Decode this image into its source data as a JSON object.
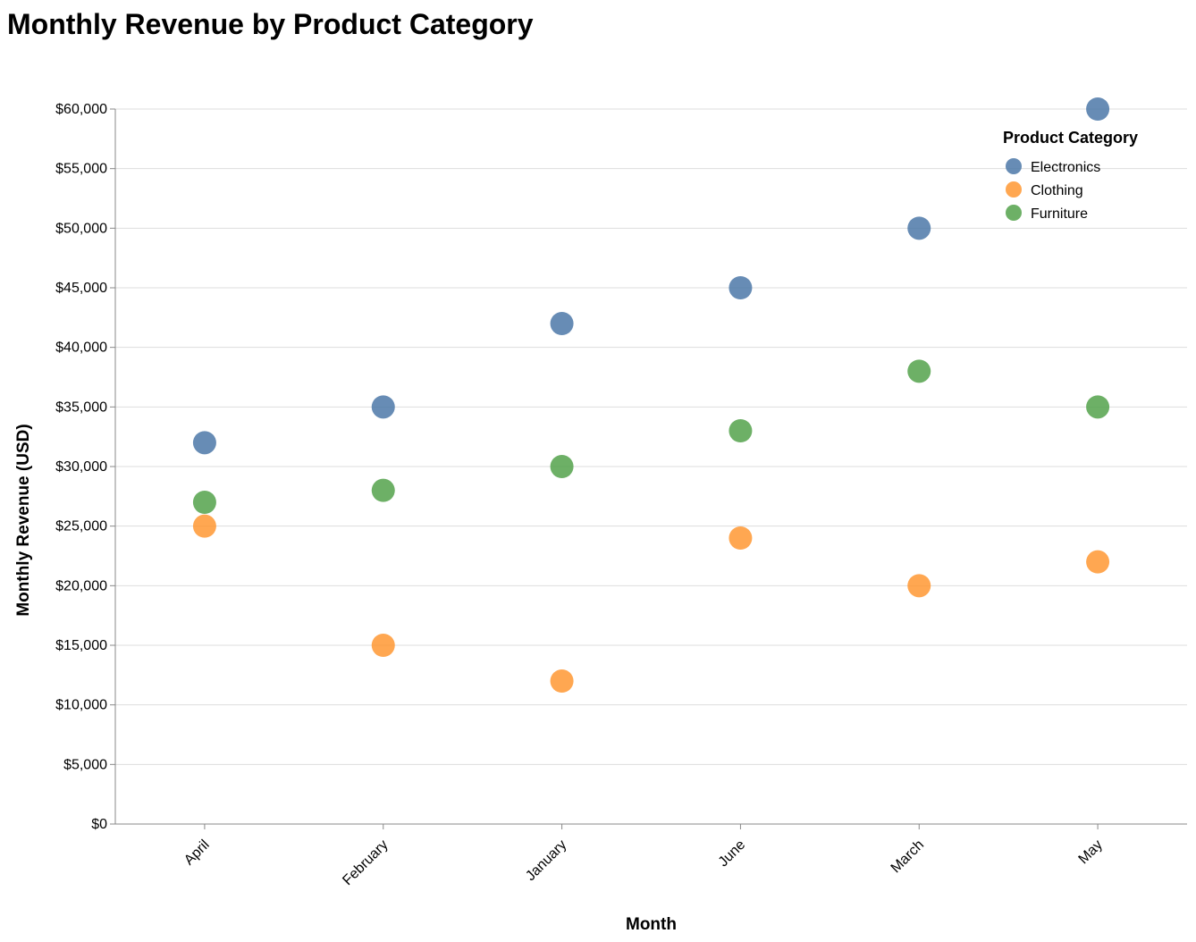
{
  "chart_data": {
    "type": "scatter",
    "title": "Monthly Revenue by Product Category",
    "xlabel": "Month",
    "ylabel": "Monthly Revenue (USD)",
    "categories": [
      "April",
      "February",
      "January",
      "June",
      "March",
      "May"
    ],
    "ylim": [
      0,
      60000
    ],
    "yticks": [
      0,
      5000,
      10000,
      15000,
      20000,
      25000,
      30000,
      35000,
      40000,
      45000,
      50000,
      55000,
      60000
    ],
    "ytick_labels": [
      "$0",
      "$5,000",
      "$10,000",
      "$15,000",
      "$20,000",
      "$25,000",
      "$30,000",
      "$35,000",
      "$40,000",
      "$45,000",
      "$50,000",
      "$55,000",
      "$60,000"
    ],
    "grid": true,
    "legend": {
      "title": "Product Category",
      "placement": "top-right"
    },
    "series": [
      {
        "name": "Electronics",
        "color": "#4c78a8",
        "values": [
          32000,
          35000,
          42000,
          45000,
          50000,
          60000
        ]
      },
      {
        "name": "Clothing",
        "color": "#ff9833",
        "values": [
          25000,
          15000,
          12000,
          24000,
          20000,
          22000
        ]
      },
      {
        "name": "Furniture",
        "color": "#54a24b",
        "values": [
          27000,
          28000,
          30000,
          33000,
          38000,
          35000
        ]
      }
    ]
  }
}
